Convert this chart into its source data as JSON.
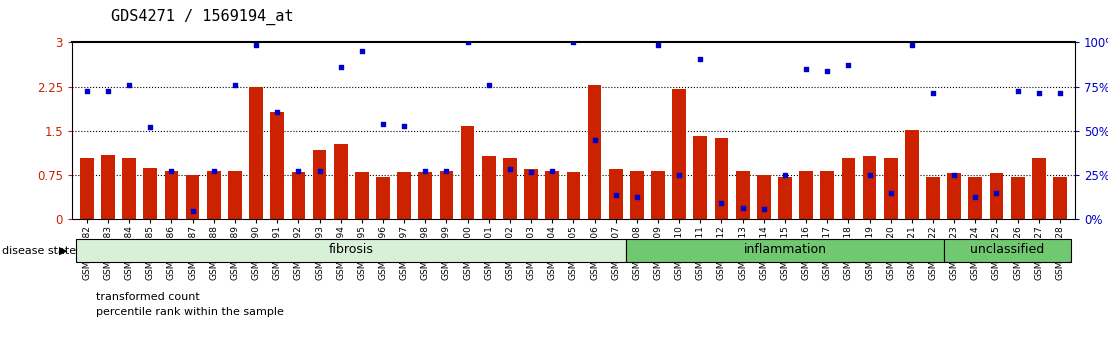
{
  "title": "GDS4271 / 1569194_at",
  "samples": [
    "GSM380382",
    "GSM380383",
    "GSM380384",
    "GSM380385",
    "GSM380386",
    "GSM380387",
    "GSM380388",
    "GSM380389",
    "GSM380390",
    "GSM380391",
    "GSM380392",
    "GSM380393",
    "GSM380394",
    "GSM380395",
    "GSM380396",
    "GSM380397",
    "GSM380398",
    "GSM380399",
    "GSM380400",
    "GSM380401",
    "GSM380402",
    "GSM380403",
    "GSM380404",
    "GSM380405",
    "GSM380406",
    "GSM380407",
    "GSM380408",
    "GSM380409",
    "GSM380410",
    "GSM380411",
    "GSM380412",
    "GSM380413",
    "GSM380414",
    "GSM380415",
    "GSM380416",
    "GSM380417",
    "GSM380418",
    "GSM380419",
    "GSM380420",
    "GSM380421",
    "GSM380422",
    "GSM380423",
    "GSM380424",
    "GSM380425",
    "GSM380426",
    "GSM380427",
    "GSM380428"
  ],
  "bar_values": [
    1.05,
    1.1,
    1.05,
    0.88,
    0.82,
    0.75,
    0.82,
    0.82,
    2.25,
    1.82,
    0.8,
    1.18,
    1.28,
    0.8,
    0.72,
    0.8,
    0.8,
    0.82,
    1.58,
    1.08,
    1.05,
    0.85,
    0.82,
    0.8,
    2.28,
    0.85,
    0.82,
    0.82,
    2.22,
    1.42,
    1.38,
    0.82,
    0.75,
    0.72,
    0.82,
    0.82,
    1.05,
    1.08,
    1.05,
    1.52,
    0.72,
    0.78,
    0.72,
    0.78,
    0.72,
    1.05,
    0.72
  ],
  "dot_values": [
    2.18,
    2.18,
    2.28,
    1.56,
    0.82,
    0.15,
    0.82,
    2.28,
    2.95,
    1.82,
    0.82,
    0.82,
    2.58,
    2.85,
    1.62,
    1.58,
    0.82,
    0.82,
    3.0,
    2.28,
    0.85,
    0.8,
    0.82,
    3.0,
    1.35,
    0.42,
    0.38,
    2.95,
    0.75,
    2.72,
    0.28,
    0.2,
    0.18,
    0.75,
    2.55,
    2.52,
    2.62,
    0.75,
    0.45,
    2.95,
    2.15,
    0.75,
    0.38,
    0.45,
    2.18,
    2.15,
    2.15
  ],
  "groups": [
    {
      "label": "fibrosis",
      "start": 0,
      "end": 26,
      "color": "#d8f0d8"
    },
    {
      "label": "inflammation",
      "start": 26,
      "end": 41,
      "color": "#70c870"
    },
    {
      "label": "unclassified",
      "start": 41,
      "end": 47,
      "color": "#70c870"
    }
  ],
  "ylim_left": [
    0,
    3.0
  ],
  "ylim_right": [
    0,
    100
  ],
  "yticks_left": [
    0,
    0.75,
    1.5,
    2.25,
    3.0
  ],
  "yticks_right": [
    0,
    25,
    50,
    75,
    100
  ],
  "hlines": [
    0.75,
    1.5,
    2.25
  ],
  "bar_color": "#cc2200",
  "dot_color": "#0000cc",
  "title_fontsize": 11,
  "tick_fontsize": 6.5,
  "legend_fontsize": 8,
  "group_label_fontsize": 9
}
